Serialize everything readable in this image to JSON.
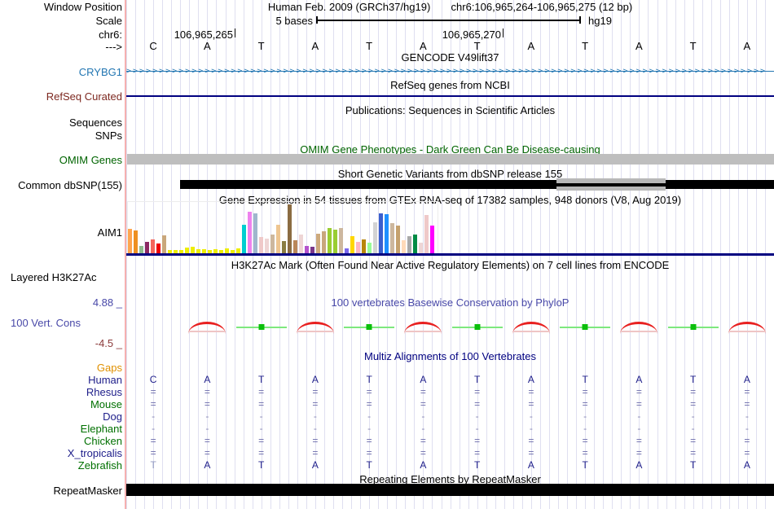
{
  "meta": {
    "assembly_title": "Human Feb. 2009 (GRCh37/hg19)",
    "position_title": "chr6:106,965,264-106,965,275 (12 bp)",
    "scale_label": "5 bases",
    "assembly_short": "hg19",
    "coord_left": "106,965,265",
    "coord_right": "106,965,270"
  },
  "left_labels": {
    "window_position": "Window Position",
    "scale": "Scale",
    "chrom": "chr6:",
    "strand": "--->",
    "gencode_gene": "CRYBG1",
    "refseq": "RefSeq Curated",
    "sequences": "Sequences",
    "snps": "SNPs",
    "omim": "OMIM Genes",
    "dbsnp": "Common dbSNP(155)",
    "gtex_gene": "AIM1",
    "h3k27ac": "Layered H3K27Ac",
    "cons_max": "4.88 _",
    "cons": "100 Vert. Cons",
    "cons_min": "-4.5 _",
    "repeatmasker": "RepeatMasker"
  },
  "titles": {
    "gencode": "GENCODE V49lift37",
    "refseq": "RefSeq genes from NCBI",
    "publications": "Publications: Sequences in Scientific Articles",
    "omim": "OMIM Gene Phenotypes - Dark Green Can Be Disease-causing",
    "dbsnp": "Short Genetic Variants from dbSNP release 155",
    "gtex": "Gene Expression in 54 tissues from GTEx RNA-seq of 17382 samples, 948 donors (V8, Aug 2019)",
    "h3k27ac": "H3K27Ac Mark (Often Found Near Active Regulatory Elements) on 7 cell lines from ENCODE",
    "phylop": "100 vertebrates Basewise Conservation by PhyloP",
    "multiz": "Multiz Alignments of 100 Vertebrates",
    "repeatmasker": "Repeating Elements by RepeatMasker"
  },
  "bases": [
    "C",
    "A",
    "T",
    "A",
    "T",
    "A",
    "T",
    "A",
    "T",
    "A",
    "T",
    "A"
  ],
  "gencode": {
    "arrow_char": ">",
    "arrow_count": 98
  },
  "conservation": {
    "pattern": [
      "none",
      "arc",
      "line",
      "arc",
      "line",
      "arc",
      "line",
      "arc",
      "line",
      "arc",
      "line",
      "arc"
    ]
  },
  "alignment": {
    "species": [
      {
        "name": "Gaps",
        "color": "#E09000",
        "cell_color": "#6A6AAA",
        "cells": [
          "",
          "",
          "",
          "",
          "",
          "",
          "",
          "",
          "",
          "",
          "",
          ""
        ]
      },
      {
        "name": "Human",
        "color": "#20208B",
        "cell_color": "#20208B",
        "cells": [
          "C",
          "A",
          "T",
          "A",
          "T",
          "A",
          "T",
          "A",
          "T",
          "A",
          "T",
          "A"
        ]
      },
      {
        "name": "Rhesus",
        "color": "#20208B",
        "cell_color": "#6A6AAA",
        "cells": [
          "=",
          "=",
          "=",
          "=",
          "=",
          "=",
          "=",
          "=",
          "=",
          "=",
          "=",
          "="
        ]
      },
      {
        "name": "Mouse",
        "color": "#007000",
        "cell_color": "#6A6AAA",
        "cells": [
          "=",
          "=",
          "=",
          "=",
          "=",
          "=",
          "=",
          "=",
          "=",
          "=",
          "=",
          "="
        ]
      },
      {
        "name": "Dog",
        "color": "#20208B",
        "cell_color": "#8A8AB5",
        "cells": [
          "-",
          "-",
          "-",
          "-",
          "-",
          "-",
          "-",
          "-",
          "-",
          "-",
          "-",
          "-"
        ]
      },
      {
        "name": "Elephant",
        "color": "#007000",
        "cell_color": "#8A8AB5",
        "cells": [
          "-",
          "-",
          "-",
          "-",
          "-",
          "-",
          "-",
          "-",
          "-",
          "-",
          "-",
          "-"
        ]
      },
      {
        "name": "Chicken",
        "color": "#007000",
        "cell_color": "#6A6AAA",
        "cells": [
          "=",
          "=",
          "=",
          "=",
          "=",
          "=",
          "=",
          "=",
          "=",
          "=",
          "=",
          "="
        ]
      },
      {
        "name": "X_tropicalis",
        "color": "#20208B",
        "cell_color": "#6A6AAA",
        "cells": [
          "=",
          "=",
          "=",
          "=",
          "=",
          "=",
          "=",
          "=",
          "=",
          "=",
          "=",
          "="
        ]
      },
      {
        "name": "Zebrafish",
        "color": "#007000",
        "cell_color": "#20208B",
        "cells": [
          "T",
          "A",
          "T",
          "A",
          "T",
          "A",
          "T",
          "A",
          "T",
          "A",
          "T",
          "A"
        ],
        "cell_colors": [
          "#9098C0",
          "#20208B",
          "#20208B",
          "#20208B",
          "#20208B",
          "#20208B",
          "#20208B",
          "#20208B",
          "#20208B",
          "#20208B",
          "#20208B",
          "#20208B"
        ]
      }
    ]
  },
  "chart_data": {
    "type": "bar",
    "title": "Gene Expression in 54 tissues from GTEx RNA-seq of 17382 samples, 948 donors (V8, Aug 2019)",
    "gene": "AIM1",
    "values": [
      30,
      28,
      9,
      14,
      17,
      12,
      22,
      4,
      4,
      4,
      7,
      8,
      5,
      5,
      4,
      5,
      4,
      6,
      4,
      6,
      35,
      51,
      49,
      20,
      18,
      23,
      35,
      15,
      60,
      16,
      23,
      9,
      8,
      24,
      27,
      31,
      29,
      31,
      6,
      21,
      14,
      17,
      13,
      38,
      49,
      48,
      37,
      34,
      16,
      21,
      23,
      13,
      47,
      34
    ],
    "colors": [
      "#FFA54F",
      "#EE9022",
      "#8FBC8F",
      "#8B2963",
      "#F4675C",
      "#EE0000",
      "#C9A77C",
      "#EEEE00",
      "#EEEE00",
      "#EEEE00",
      "#EEEE00",
      "#EEEE00",
      "#EEEE00",
      "#EEEE00",
      "#EEEE00",
      "#EEEE00",
      "#EEEE00",
      "#EEEE00",
      "#EEEE00",
      "#EEEE00",
      "#00CED1",
      "#EE82EE",
      "#9FB6CD",
      "#EFC9C9",
      "#EED5D5",
      "#CDB79E",
      "#EEC591",
      "#8B7D43",
      "#8B6C42",
      "#BA8759",
      "#EED5D5",
      "#B452CD",
      "#7A378B",
      "#CDAA7D",
      "#C9A77C",
      "#9ACD32",
      "#9ACD32",
      "#CDB79E",
      "#7B68EE",
      "#FFD700",
      "#FFB6C1",
      "#B8860B",
      "#98FB98",
      "#D3D3D3",
      "#3A5FCD",
      "#1E90FF",
      "#CDB79E",
      "#C5A16E",
      "#FFDAB9",
      "#A9A9A9",
      "#008B45",
      "#EED5D5",
      "#EFC9C9",
      "#FF00FF"
    ]
  },
  "colors": {
    "grid": "#dfdff0",
    "guide_pink": "#f5b0b0",
    "navy": "#000080",
    "letter_navy": "#20208B",
    "gencode_blue": "#2276B2",
    "refseq_maroon": "#7D2820",
    "omim_green": "#006400",
    "phylop_blue": "#4848A8",
    "cons_min_red": "#8B3A3A",
    "gaps_orange": "#E09000",
    "species_green": "#007000",
    "omim_bar_gray": "#BEBEBE",
    "dbsnp_gray": "#B8B8B8",
    "bar_black": "#000000",
    "cons_arc_red": "#E82020",
    "cons_line_green": "#7EE87E",
    "cons_sq_green": "#0BBF0B"
  }
}
